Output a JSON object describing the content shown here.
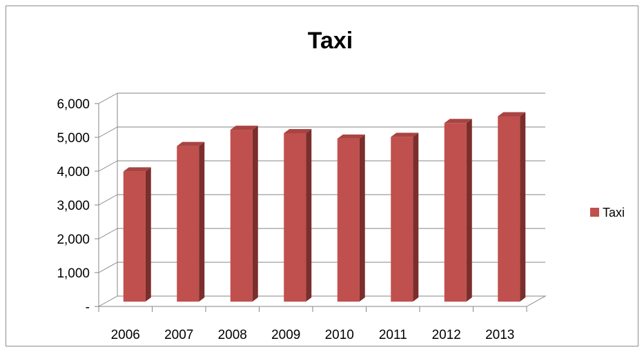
{
  "chart_data": {
    "type": "bar",
    "title": "Taxi",
    "categories": [
      "2006",
      "2007",
      "2008",
      "2009",
      "2010",
      "2011",
      "2012",
      "2013"
    ],
    "series": [
      {
        "name": "Taxi",
        "values": [
          3850,
          4600,
          5080,
          4980,
          4820,
          4870,
          5280,
          5480
        ],
        "color": "#c0504d"
      }
    ],
    "ylim": [
      0,
      6000
    ],
    "y_ticks": [
      0,
      1000,
      2000,
      3000,
      4000,
      5000,
      6000
    ],
    "y_tick_labels": [
      "-",
      "1,000",
      "2,000",
      "3,000",
      "4,000",
      "5,000",
      "6,000"
    ],
    "grid": true,
    "legend_position": "right",
    "style": "3d-column"
  }
}
